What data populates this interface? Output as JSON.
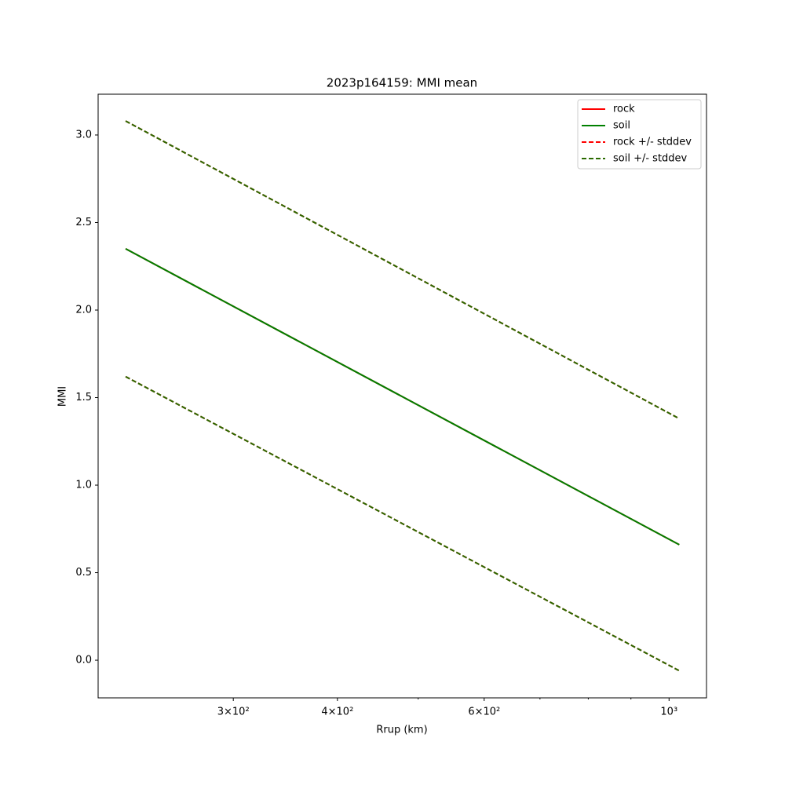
{
  "chart_data": {
    "type": "line",
    "title": "2023p164159: MMI mean",
    "x_label": "Rrup (km)",
    "y_label": "MMI",
    "x": [
      222.8,
      1028.6
    ],
    "series": [
      {
        "name": "rock",
        "color": "#ff0000",
        "dashed": false,
        "lines": [
          [
            2.35,
            0.66
          ]
        ]
      },
      {
        "name": "soil",
        "color": "#008000",
        "dashed": false,
        "lines": [
          [
            2.35,
            0.66
          ]
        ]
      },
      {
        "name": "rock +/- stddev",
        "color": "#ff0000",
        "dashed": true,
        "lines": [
          [
            3.08,
            1.38
          ],
          [
            1.62,
            -0.06
          ]
        ]
      },
      {
        "name": "soil +/- stddev",
        "color": "#2a6a00",
        "dashed": true,
        "lines": [
          [
            3.08,
            1.38
          ],
          [
            1.62,
            -0.06
          ]
        ]
      }
    ],
    "xscale": "log",
    "xlim": [
      206.5,
      1109
    ],
    "xticks": [
      {
        "value": 300,
        "label": "3×10²"
      },
      {
        "value": 400,
        "label": "4×10²"
      },
      {
        "value": 600,
        "label": "6×10²"
      },
      {
        "value": 1000,
        "label": "10³"
      }
    ],
    "xminor_ticks": [
      500,
      700,
      800,
      900
    ],
    "ylim": [
      -0.215,
      3.233
    ],
    "yticks": [
      {
        "value": 0,
        "label": "0.0"
      },
      0.5,
      {
        "value": 1,
        "label": "1.0"
      },
      1.5,
      {
        "value": 2,
        "label": "2.0"
      },
      2.5,
      {
        "value": 3,
        "label": "3.0"
      }
    ],
    "legend": "upper right"
  }
}
